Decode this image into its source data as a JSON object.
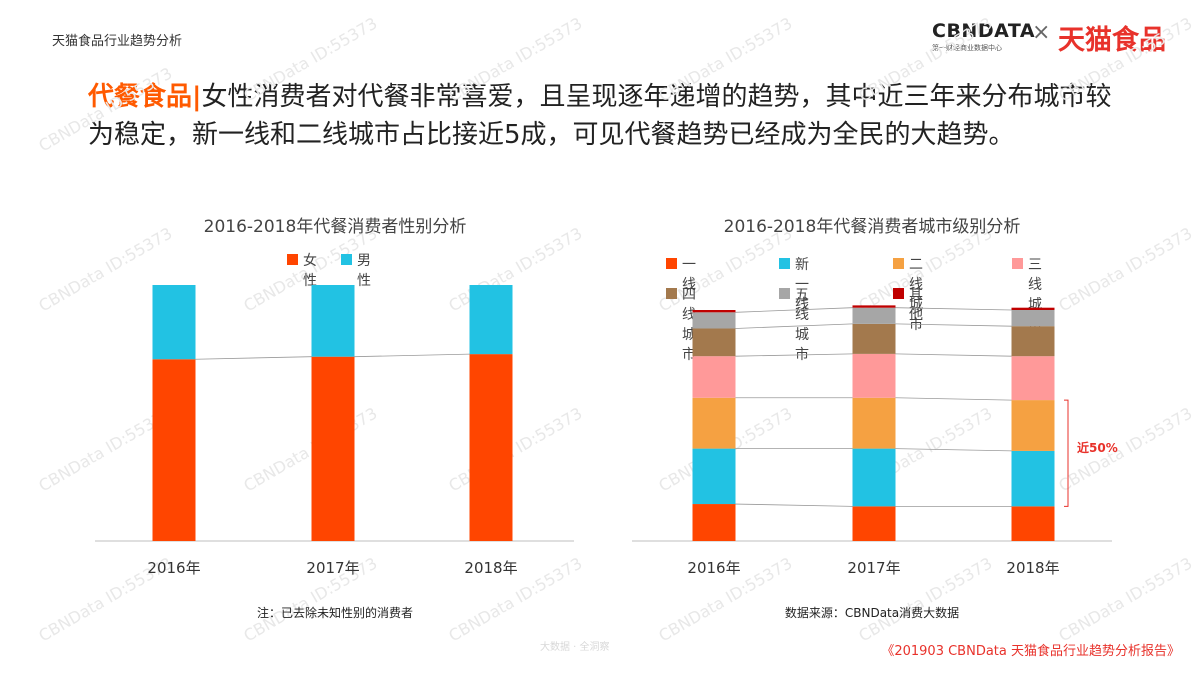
{
  "header": {
    "title": "天猫食品行业趋势分析",
    "logo_cbn": "CBNDATA",
    "logo_cbn_sub": "第一财经商业数据中心",
    "logo_x": "×",
    "logo_tmall": "天猫食品"
  },
  "headline": {
    "prefix": "代餐食品|",
    "text": "女性消费者对代餐非常喜爱，且呈现逐年递增的趋势，其中近三年来分布城市较为稳定，新一线和二线城市占比接近5成，可见代餐趋势已经成为全民的大趋势。"
  },
  "watermark": "CBNData ID:55373",
  "footer": {
    "center": "大数据 · 全洞察",
    "source": "《201903 CBNData 天猫食品行业趋势分析报告》"
  },
  "chart_data": [
    {
      "type": "bar",
      "stacked": true,
      "title": "2016-2018年代餐消费者性别分析",
      "categories": [
        "2016年",
        "2017年",
        "2018年"
      ],
      "series": [
        {
          "name": "女性",
          "color": "#ff4500",
          "values": [
            71,
            72,
            73
          ]
        },
        {
          "name": "男性",
          "color": "#22c2e3",
          "values": [
            29,
            28,
            27
          ]
        }
      ],
      "ylim": [
        0,
        100
      ],
      "unit": "%",
      "legend": "top",
      "note": "注：已去除未知性别的消费者"
    },
    {
      "type": "bar",
      "stacked": true,
      "title": "2016-2018年代餐消费者城市级别分析",
      "categories": [
        "2016年",
        "2017年",
        "2018年"
      ],
      "series": [
        {
          "name": "一线",
          "color": "#ff4500",
          "values": [
            16,
            15,
            15
          ]
        },
        {
          "name": "新一线",
          "color": "#22c2e3",
          "values": [
            24,
            25,
            24
          ]
        },
        {
          "name": "二线城市",
          "color": "#f5a142",
          "values": [
            22,
            22,
            22
          ]
        },
        {
          "name": "三线城市",
          "color": "#ff9999",
          "values": [
            18,
            19,
            19
          ]
        },
        {
          "name": "四线城市",
          "color": "#a3794d",
          "values": [
            12,
            13,
            13
          ]
        },
        {
          "name": "五线城市",
          "color": "#a6a6a6",
          "values": [
            7,
            7,
            7
          ]
        },
        {
          "name": "其他",
          "color": "#c00000",
          "values": [
            1,
            1,
            1
          ]
        }
      ],
      "ylim": [
        0,
        100
      ],
      "unit": "%",
      "legend": "top",
      "annotation": "近50%",
      "note": "数据来源：CBNData消费大数据"
    }
  ]
}
